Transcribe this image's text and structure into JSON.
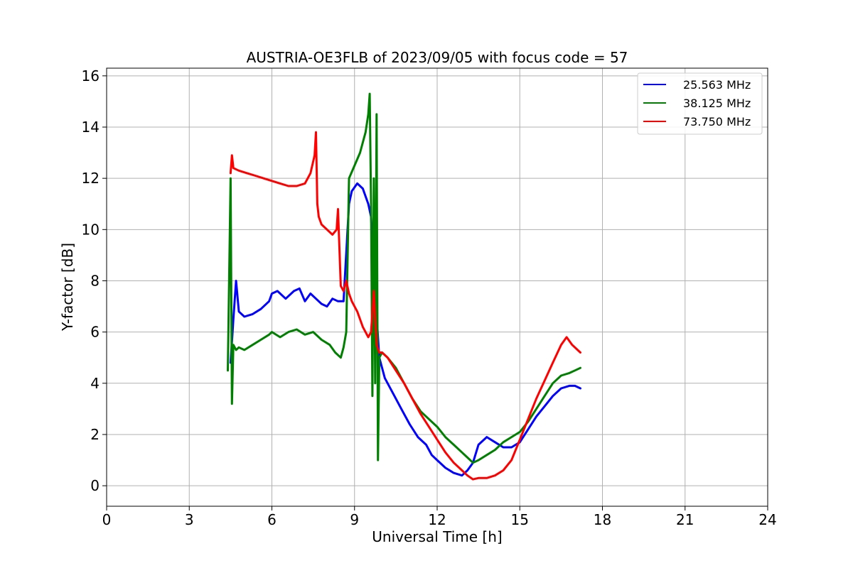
{
  "chart_data": {
    "type": "line",
    "title": "AUSTRIA-OE3FLB of 2023/09/05 with focus code = 57",
    "xlabel": "Universal Time [h]",
    "ylabel": "Y-factor [dB]",
    "xlim": [
      0,
      24
    ],
    "ylim": [
      -0.8,
      16.3
    ],
    "xticks": [
      0,
      3,
      6,
      9,
      12,
      15,
      18,
      21,
      24
    ],
    "yticks": [
      0,
      2,
      4,
      6,
      8,
      10,
      12,
      14,
      16
    ],
    "xtick_labels": [
      "0",
      "3",
      "6",
      "9",
      "12",
      "15",
      "18",
      "21",
      "24"
    ],
    "ytick_labels": [
      "0",
      "2",
      "4",
      "6",
      "8",
      "10",
      "12",
      "14",
      "16"
    ],
    "grid": true,
    "legend_position": "top-right",
    "series": [
      {
        "name": "25.563 MHz",
        "color": "#0000ff",
        "x": [
          4.5,
          4.6,
          4.7,
          4.8,
          5.0,
          5.3,
          5.6,
          5.9,
          6.0,
          6.2,
          6.5,
          6.8,
          7.0,
          7.2,
          7.4,
          7.6,
          7.8,
          8.0,
          8.2,
          8.4,
          8.6,
          8.8,
          8.9,
          9.1,
          9.3,
          9.5,
          9.6,
          9.75,
          9.9,
          10.1,
          10.4,
          10.7,
          11.0,
          11.3,
          11.6,
          11.8,
          12.0,
          12.3,
          12.6,
          12.9,
          13.1,
          13.3,
          13.5,
          13.8,
          14.1,
          14.4,
          14.7,
          15.0,
          15.3,
          15.6,
          15.9,
          16.2,
          16.5,
          16.8,
          17.0,
          17.2
        ],
        "y": [
          4.8,
          6.5,
          8.0,
          6.8,
          6.6,
          6.7,
          6.9,
          7.2,
          7.5,
          7.6,
          7.3,
          7.6,
          7.7,
          7.2,
          7.5,
          7.3,
          7.1,
          7.0,
          7.3,
          7.2,
          7.2,
          11.0,
          11.5,
          11.8,
          11.6,
          11.0,
          10.5,
          7.5,
          5.0,
          4.2,
          3.6,
          3.0,
          2.4,
          1.9,
          1.6,
          1.2,
          1.0,
          0.7,
          0.5,
          0.4,
          0.6,
          0.9,
          1.6,
          1.9,
          1.7,
          1.5,
          1.5,
          1.7,
          2.2,
          2.7,
          3.1,
          3.5,
          3.8,
          3.9,
          3.9,
          3.8
        ]
      },
      {
        "name": "38.125 MHz",
        "color": "#008000",
        "x": [
          4.4,
          4.5,
          4.55,
          4.6,
          4.7,
          4.8,
          5.0,
          5.3,
          5.6,
          5.9,
          6.0,
          6.3,
          6.6,
          6.9,
          7.2,
          7.5,
          7.8,
          8.1,
          8.3,
          8.5,
          8.6,
          8.7,
          8.8,
          9.0,
          9.2,
          9.4,
          9.5,
          9.55,
          9.6,
          9.65,
          9.7,
          9.75,
          9.8,
          9.85,
          9.9,
          10.0,
          10.2,
          10.5,
          10.8,
          11.1,
          11.4,
          11.7,
          12.0,
          12.3,
          12.6,
          12.9,
          13.1,
          13.3,
          13.5,
          13.8,
          14.1,
          14.4,
          14.7,
          15.0,
          15.3,
          15.6,
          15.9,
          16.2,
          16.5,
          16.8,
          17.0,
          17.2
        ],
        "y": [
          4.5,
          12.0,
          3.2,
          5.5,
          5.3,
          5.4,
          5.3,
          5.5,
          5.7,
          5.9,
          6.0,
          5.8,
          6.0,
          6.1,
          5.9,
          6.0,
          5.7,
          5.5,
          5.2,
          5.0,
          5.4,
          6.0,
          12.0,
          12.5,
          13.0,
          13.8,
          14.5,
          15.3,
          11.0,
          3.5,
          12.0,
          4.0,
          14.5,
          1.0,
          5.0,
          5.2,
          5.0,
          4.6,
          4.0,
          3.4,
          2.9,
          2.6,
          2.3,
          1.9,
          1.6,
          1.3,
          1.1,
          0.9,
          1.0,
          1.2,
          1.4,
          1.7,
          1.9,
          2.1,
          2.5,
          3.0,
          3.5,
          4.0,
          4.3,
          4.4,
          4.5,
          4.6
        ]
      },
      {
        "name": "73.750 MHz",
        "color": "#ff0000",
        "x": [
          4.5,
          4.55,
          4.6,
          4.8,
          5.1,
          5.4,
          5.7,
          6.0,
          6.3,
          6.6,
          6.9,
          7.2,
          7.4,
          7.55,
          7.6,
          7.65,
          7.7,
          7.8,
          8.0,
          8.2,
          8.35,
          8.4,
          8.5,
          8.6,
          8.7,
          8.8,
          8.9,
          9.1,
          9.3,
          9.5,
          9.6,
          9.7,
          9.8,
          9.9,
          10.0,
          10.2,
          10.5,
          10.8,
          11.1,
          11.4,
          11.7,
          12.0,
          12.3,
          12.6,
          12.9,
          13.1,
          13.3,
          13.5,
          13.8,
          14.1,
          14.4,
          14.7,
          15.0,
          15.3,
          15.6,
          15.9,
          16.2,
          16.5,
          16.7,
          16.9,
          17.1,
          17.2
        ],
        "y": [
          12.2,
          12.9,
          12.4,
          12.3,
          12.2,
          12.1,
          12.0,
          11.9,
          11.8,
          11.7,
          11.7,
          11.8,
          12.2,
          12.9,
          13.8,
          11.0,
          10.5,
          10.2,
          10.0,
          9.8,
          10.0,
          10.8,
          7.8,
          7.6,
          8.0,
          7.5,
          7.2,
          6.8,
          6.2,
          5.8,
          6.0,
          7.6,
          5.5,
          5.2,
          5.2,
          5.0,
          4.5,
          4.0,
          3.4,
          2.8,
          2.3,
          1.8,
          1.3,
          0.9,
          0.6,
          0.4,
          0.25,
          0.3,
          0.3,
          0.4,
          0.6,
          1.0,
          1.8,
          2.6,
          3.4,
          4.1,
          4.8,
          5.5,
          5.8,
          5.5,
          5.3,
          5.2
        ]
      }
    ]
  }
}
